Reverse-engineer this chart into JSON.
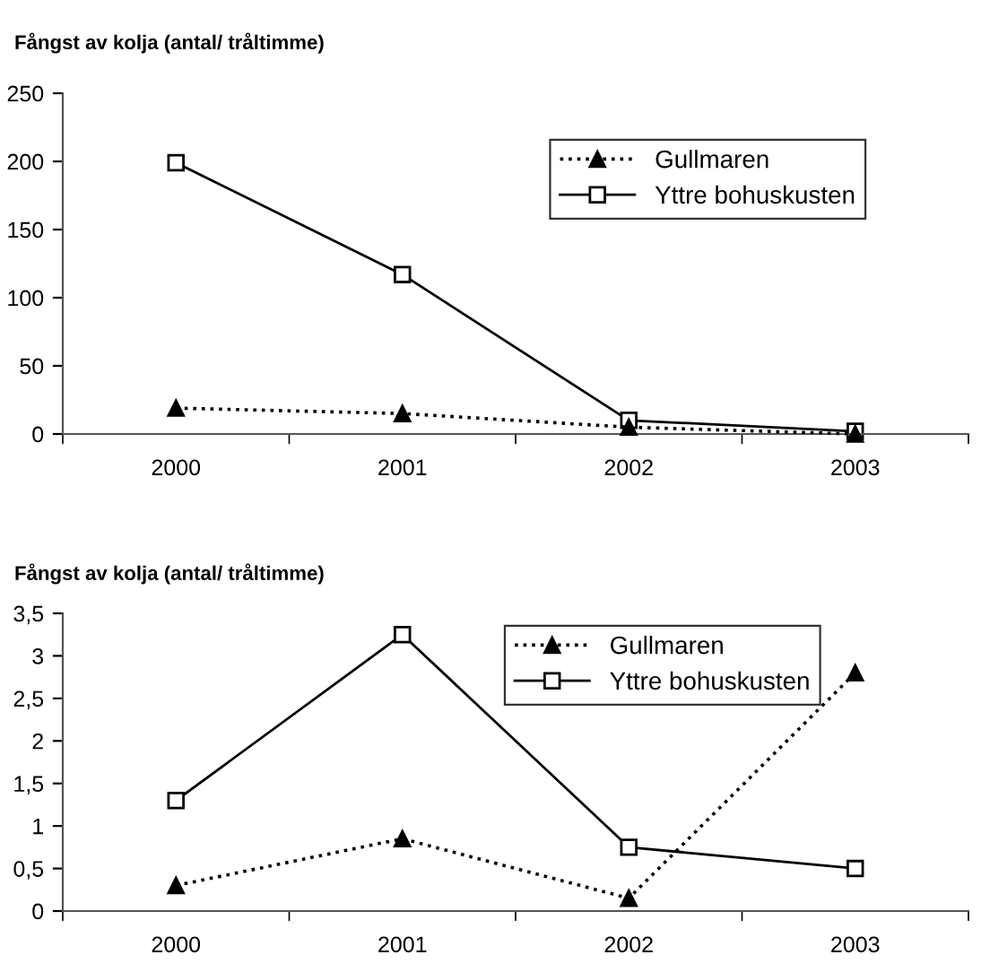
{
  "chart_data": [
    {
      "type": "line",
      "title": "Fångst av kolja (antal/ tråltimme)",
      "categories": [
        "2000",
        "2001",
        "2002",
        "2003"
      ],
      "series": [
        {
          "name": "Gullmaren",
          "color": "#000000",
          "values": [
            19,
            15,
            5,
            0
          ],
          "marker": "triangle",
          "line_style": "dotted"
        },
        {
          "name": "Yttre bohuskusten",
          "color": "#000000",
          "values": [
            199,
            117,
            10,
            2
          ],
          "marker": "square",
          "line_style": "solid"
        }
      ],
      "ylim": [
        0,
        250
      ],
      "yticks": [
        0,
        50,
        100,
        150,
        200,
        250
      ],
      "legend": "top right",
      "grid": false
    },
    {
      "type": "line",
      "title": "Fångst av kolja (antal/ tråltimme)",
      "categories": [
        "2000",
        "2001",
        "2002",
        "2003"
      ],
      "series": [
        {
          "name": "Gullmaren",
          "color": "#000000",
          "values": [
            0.3,
            0.85,
            0.15,
            2.8
          ],
          "marker": "triangle",
          "line_style": "dotted"
        },
        {
          "name": "Yttre bohuskusten",
          "color": "#000000",
          "values": [
            1.3,
            3.25,
            0.75,
            0.5
          ],
          "marker": "square",
          "line_style": "solid"
        }
      ],
      "ylim": [
        0,
        3.5
      ],
      "yticks": [
        0,
        {
          "value": 0.5,
          "label": "0,5"
        },
        1,
        {
          "value": 1.5,
          "label": "1,5"
        },
        2,
        {
          "value": 2.5,
          "label": "2,5"
        },
        3,
        {
          "value": 3.5,
          "label": "3,5"
        }
      ],
      "legend": "top right",
      "grid": false
    }
  ]
}
